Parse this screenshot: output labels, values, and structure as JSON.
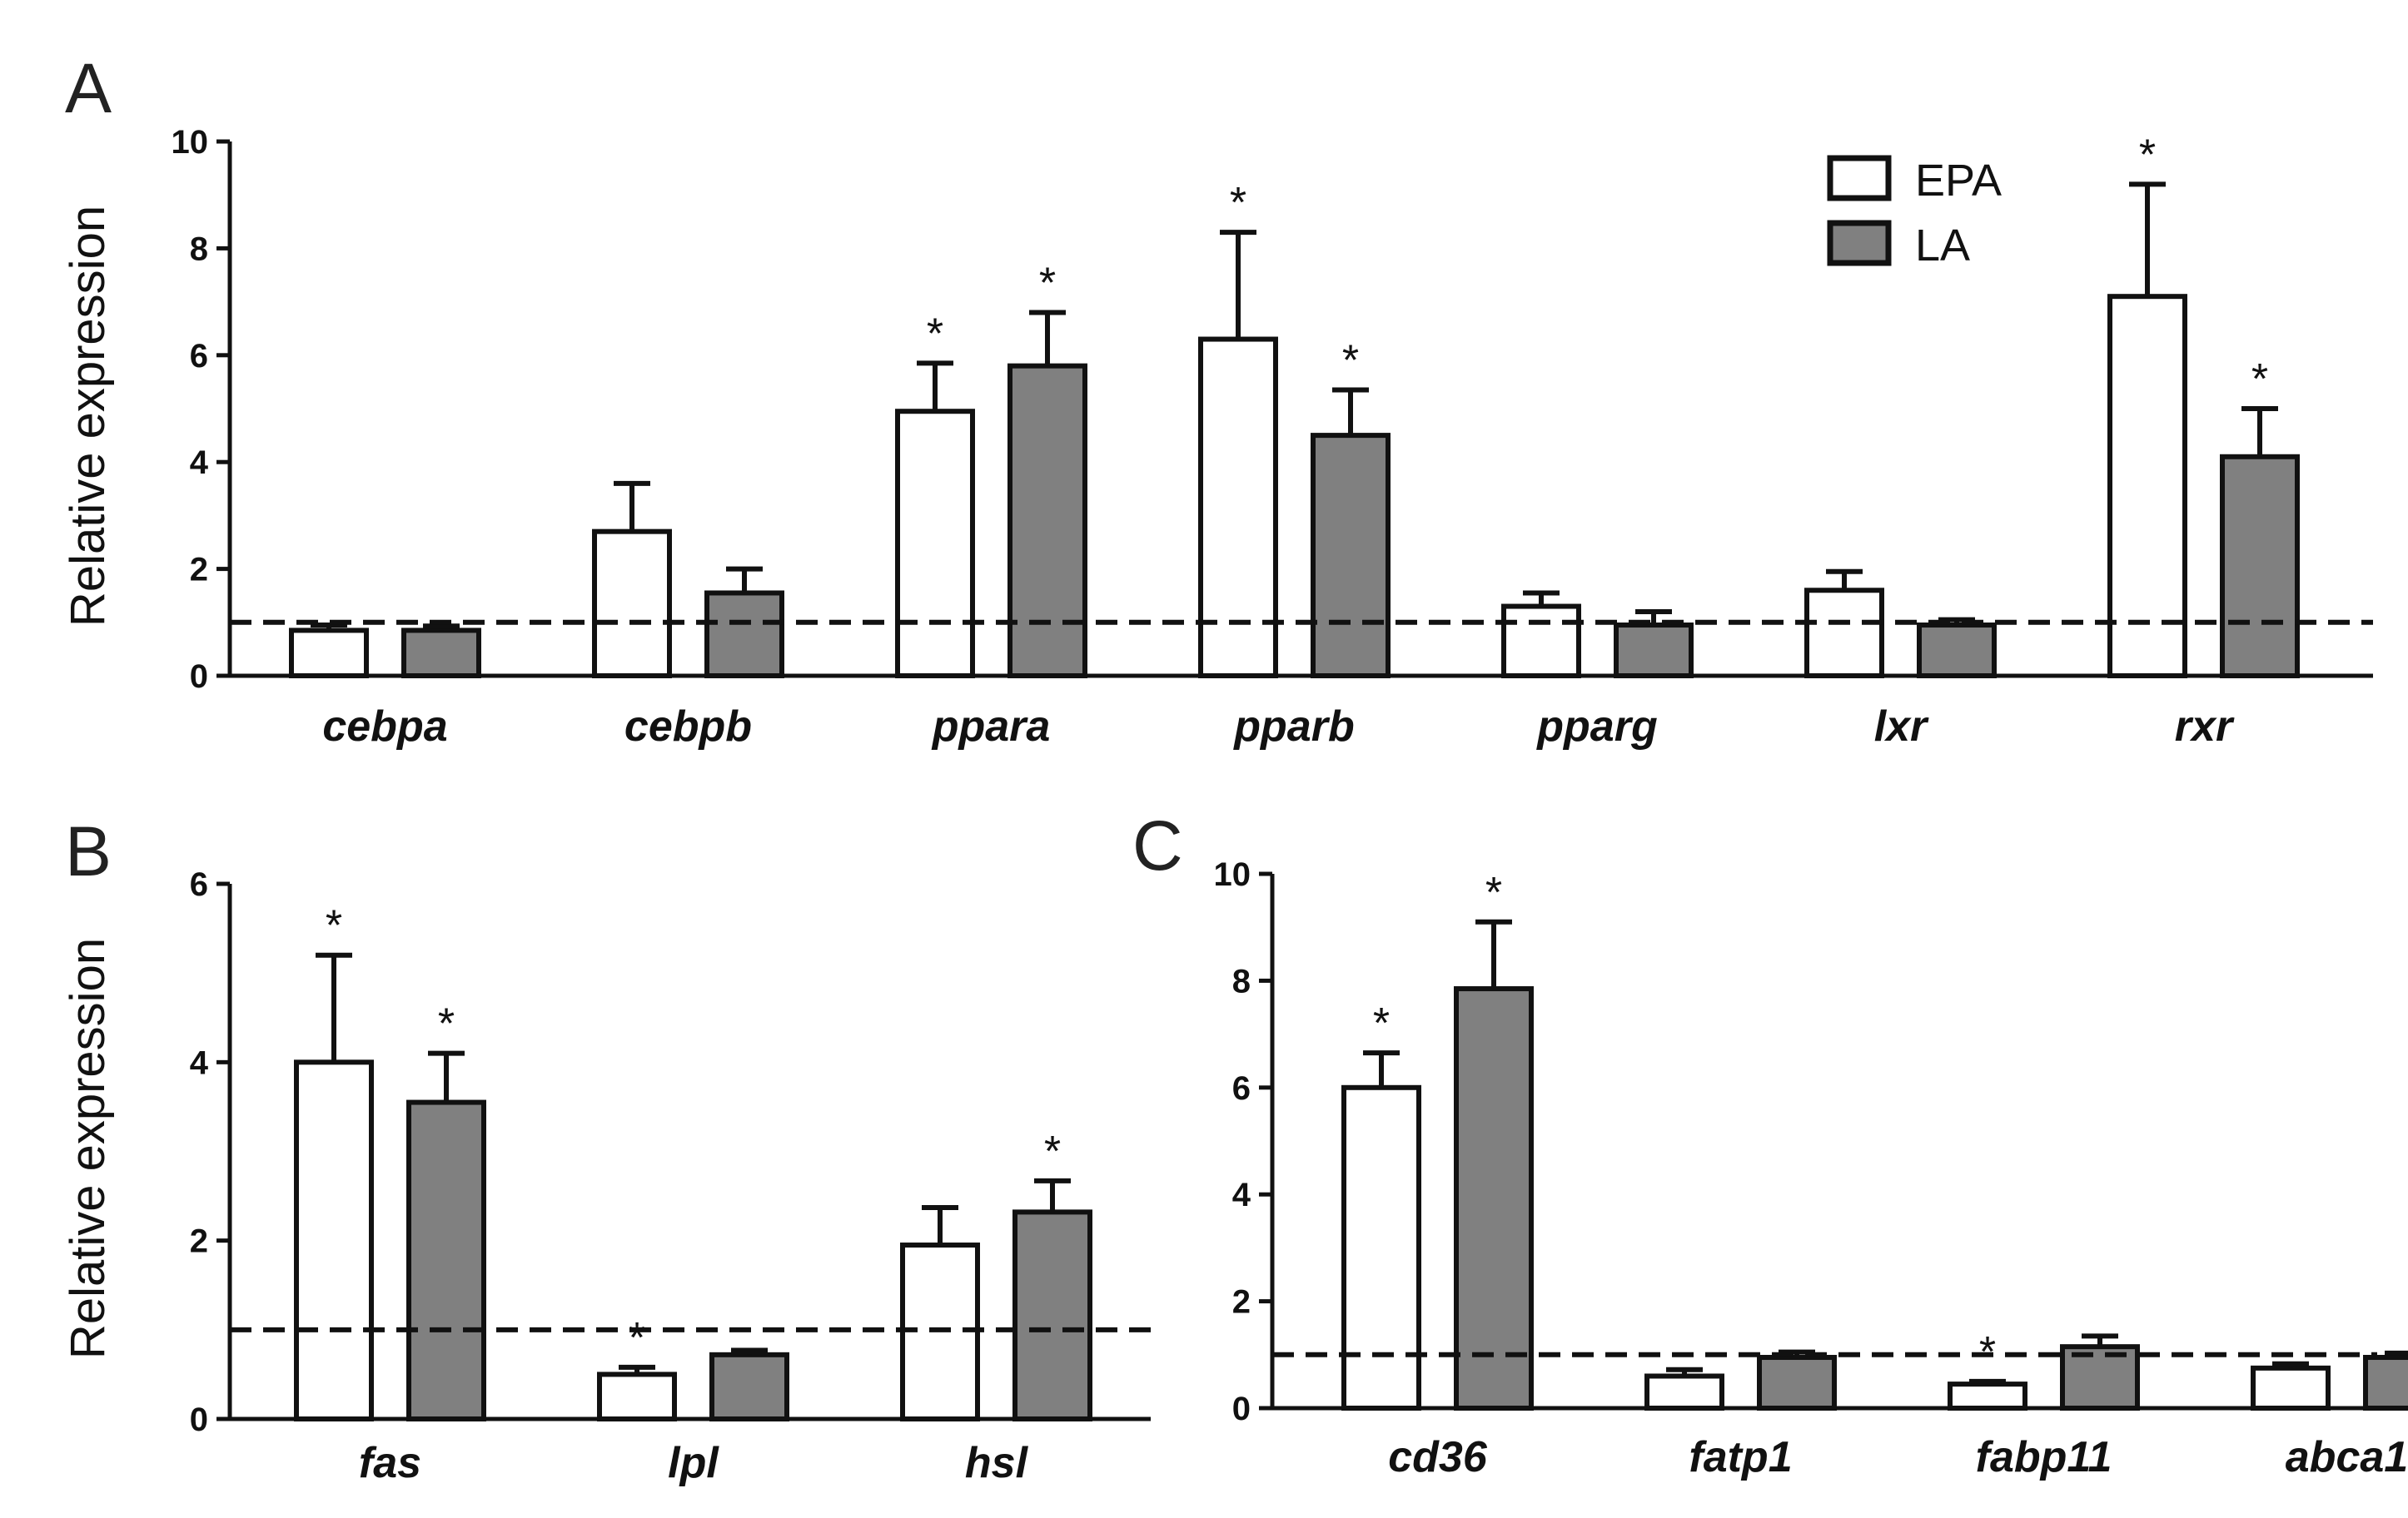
{
  "figure": {
    "colors": {
      "epa": "#ffffff",
      "la": "#808080",
      "stroke": "#111111"
    }
  },
  "chart_data": [
    {
      "id": "A",
      "panel": "A",
      "type": "bar",
      "ylabel": "Relative expression",
      "xlabel": "",
      "ylim": [
        0,
        10
      ],
      "yticks": [
        "0",
        "2",
        "4",
        "6",
        "8",
        "10"
      ],
      "reference_line": 1,
      "legend": {
        "placement": "top-right",
        "entries": [
          "EPA",
          "LA"
        ]
      },
      "categories": [
        "cebpa",
        "cebpb",
        "ppara",
        "pparb",
        "pparg",
        "lxr",
        "rxr"
      ],
      "series": [
        {
          "name": "EPA",
          "values": [
            0.85,
            2.7,
            4.95,
            6.3,
            1.3,
            1.6,
            7.1
          ],
          "errors": [
            0.1,
            0.9,
            0.9,
            2.0,
            0.25,
            0.35,
            2.1
          ],
          "significant": [
            "",
            "",
            "*",
            "*",
            "",
            "",
            "*"
          ]
        },
        {
          "name": "LA",
          "values": [
            0.85,
            1.55,
            5.8,
            4.5,
            0.95,
            0.95,
            4.1
          ],
          "errors": [
            0.08,
            0.45,
            1.0,
            0.85,
            0.25,
            0.1,
            0.9
          ],
          "significant": [
            "",
            "",
            "*",
            "*",
            "",
            "",
            "*"
          ]
        }
      ]
    },
    {
      "id": "B",
      "panel": "B",
      "type": "bar",
      "ylabel": "Relative expression",
      "xlabel": "",
      "ylim": [
        0,
        6
      ],
      "yticks": [
        "0",
        "2",
        "4",
        "6"
      ],
      "reference_line": 1,
      "categories": [
        "fas",
        "lpl",
        "hsl"
      ],
      "series": [
        {
          "name": "EPA",
          "values": [
            4.0,
            0.5,
            1.95
          ],
          "errors": [
            1.2,
            0.08,
            0.42
          ],
          "significant": [
            "*",
            "*",
            ""
          ]
        },
        {
          "name": "LA",
          "values": [
            3.55,
            0.72,
            2.32
          ],
          "errors": [
            0.55,
            0.05,
            0.35
          ],
          "significant": [
            "*",
            "",
            "*"
          ]
        }
      ]
    },
    {
      "id": "C",
      "panel": "C",
      "type": "bar",
      "ylabel": "",
      "xlabel": "",
      "ylim": [
        0,
        10
      ],
      "yticks": [
        "0",
        "2",
        "4",
        "6",
        "8",
        "10"
      ],
      "reference_line": 1,
      "categories": [
        "cd36",
        "fatp1",
        "fabp11",
        "abca1"
      ],
      "series": [
        {
          "name": "EPA",
          "values": [
            6.0,
            0.6,
            0.45,
            0.75
          ],
          "errors": [
            0.65,
            0.12,
            0.05,
            0.08
          ],
          "significant": [
            "*",
            "",
            "*",
            ""
          ]
        },
        {
          "name": "LA",
          "values": [
            7.85,
            0.95,
            1.15,
            0.95
          ],
          "errors": [
            1.25,
            0.1,
            0.2,
            0.08
          ],
          "significant": [
            "*",
            "",
            "",
            ""
          ]
        }
      ]
    }
  ]
}
